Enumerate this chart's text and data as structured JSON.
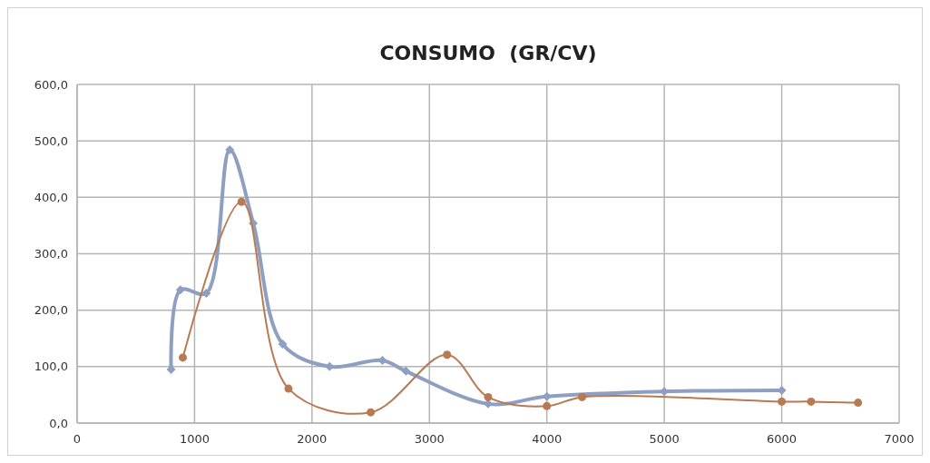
{
  "chart_data": {
    "type": "line",
    "title": "CONSUMO  (GR/CV)",
    "xlim": [
      0,
      7000
    ],
    "xticks": [
      0,
      1000,
      2000,
      3000,
      4000,
      5000,
      6000,
      7000
    ],
    "ylim": [
      0,
      600
    ],
    "yticks": [
      {
        "value": 0,
        "label": "0,0"
      },
      {
        "value": 100,
        "label": "100,0"
      },
      {
        "value": 200,
        "label": "200,0"
      },
      {
        "value": 300,
        "label": "300,0"
      },
      {
        "value": 400,
        "label": "400,0"
      },
      {
        "value": 500,
        "label": "500,0"
      },
      {
        "value": 600,
        "label": "600,0"
      }
    ],
    "grid": true,
    "series": [
      {
        "color": "#8e9fc2",
        "marker": "diamond",
        "x": [
          800,
          880,
          1100,
          1300,
          1500,
          1750,
          2150,
          2600,
          2800,
          3500,
          4000,
          5000,
          6000
        ],
        "values": [
          95,
          236,
          230,
          484,
          354,
          140,
          100,
          111,
          92,
          34,
          47,
          56,
          58
        ]
      },
      {
        "color": "#b87a53",
        "marker": "circle",
        "x": [
          900,
          1400,
          1800,
          2500,
          3150,
          3500,
          4000,
          4300,
          6000,
          6250,
          6650
        ],
        "values": [
          116,
          392,
          61,
          19,
          121,
          46,
          30,
          46,
          38,
          38,
          36
        ]
      }
    ]
  }
}
